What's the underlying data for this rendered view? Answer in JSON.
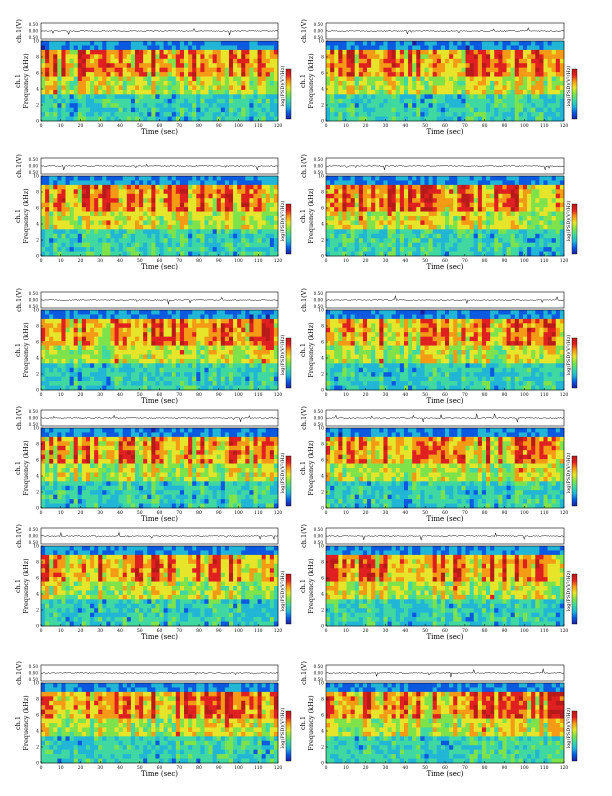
{
  "figure": {
    "panels": [
      {
        "title": "VLF Spectra",
        "date": "Oct232010",
        "station": "station=KAG",
        "start": "start UT =0:20:0"
      },
      {
        "title": "VLF Spectra",
        "date": "Oct232010",
        "station": "station=KAG",
        "start": "start UT =0:50:0"
      },
      {
        "title": "VLF Spectra",
        "date": "Oct232010",
        "station": "station=KAG",
        "start": "start UT =1:20:0"
      },
      {
        "title": "VLF Spectra",
        "date": "Oct232010",
        "station": "station=KAG",
        "start": "start UT =1:50:0"
      },
      {
        "title": "VLF Spectra",
        "date": "Oct232010",
        "station": "station=KAG",
        "start": "start UT =2:20:0"
      },
      {
        "title": "VLF Spectra",
        "date": "Oct232010",
        "station": "station=KAG",
        "start": "start UT =2:50:0"
      },
      {
        "title": "VLF Spectra",
        "date": "Oct232010",
        "station": "station=KAG",
        "start": "start UT =3:20:0"
      },
      {
        "title": "VLF Spectra",
        "date": "Oct232010",
        "station": "station=KAG",
        "start": "start UT =3:50:0"
      },
      {
        "title": "VLF Spectra",
        "date": "Oct232010",
        "station": "station=KAG",
        "start": "start UT =4:20:0"
      },
      {
        "title": "VLF Spectra",
        "date": "Oct232010",
        "station": "station=KAG",
        "start": "start UT =4:50:0"
      },
      {
        "title": "VLF Spectra",
        "date": "Oct232010",
        "station": "station=KAG",
        "start": "start UT =5:20:0"
      },
      {
        "title": "VLF Spectra",
        "date": "Oct232010",
        "station": "station=KAG",
        "start": "start UT =5:50:0"
      }
    ]
  },
  "chart_data": {
    "type": "heatmap",
    "panel_count": 12,
    "layout": "6 rows x 2 columns",
    "xlabel": "Time (sec)",
    "xlim": [
      0,
      120
    ],
    "xticks": [
      0,
      10,
      20,
      30,
      40,
      50,
      60,
      70,
      80,
      90,
      100,
      110,
      120
    ],
    "waveform": {
      "ylabel": "ch.1(V)",
      "yticks": [
        "0.00",
        "0.50"
      ],
      "top_tick": "0.50",
      "mid_tick": "0.00",
      "bottom_tick": "0.50",
      "right_ticks": [
        "0.30",
        "0.00",
        "0.30"
      ]
    },
    "spectrogram": {
      "ylabel_channel": "ch.1",
      "ylabel": "Frequency (kHz)",
      "ylim": [
        0,
        10
      ],
      "yticks": [
        0,
        2,
        4,
        6,
        8,
        10
      ],
      "colorbar_label": "log(PSD)(V²/Hz)",
      "colorscale": [
        "#1f1f9c",
        "#0a59e0",
        "#21b5d6",
        "#3fd8a0",
        "#7ee24a",
        "#e6e52a",
        "#f59a14",
        "#e02020",
        "#b81a1a"
      ]
    }
  }
}
